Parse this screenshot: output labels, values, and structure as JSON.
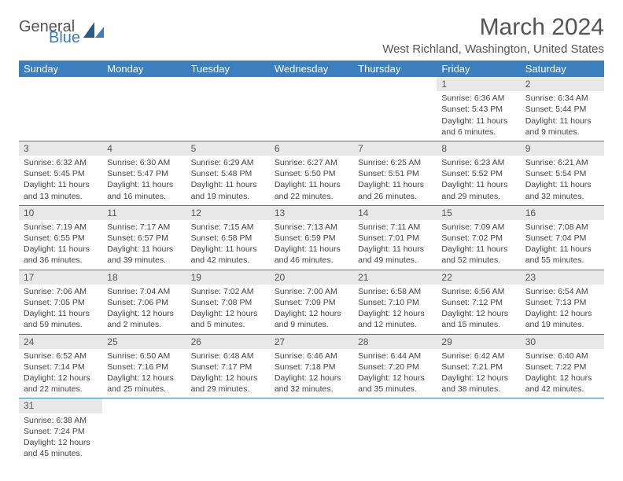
{
  "logo": {
    "general": "General",
    "blue": "Blue"
  },
  "title": "March 2024",
  "location": "West Richland, Washington, United States",
  "header_color": "#3b7fbf",
  "header_text_color": "#ffffff",
  "daynum_bg": "#e8e8e8",
  "day_headers": [
    "Sunday",
    "Monday",
    "Tuesday",
    "Wednesday",
    "Thursday",
    "Friday",
    "Saturday"
  ],
  "weeks": [
    [
      null,
      null,
      null,
      null,
      null,
      {
        "n": "1",
        "sr": "Sunrise: 6:36 AM",
        "ss": "Sunset: 5:43 PM",
        "dl": "Daylight: 11 hours and 6 minutes."
      },
      {
        "n": "2",
        "sr": "Sunrise: 6:34 AM",
        "ss": "Sunset: 5:44 PM",
        "dl": "Daylight: 11 hours and 9 minutes."
      }
    ],
    [
      {
        "n": "3",
        "sr": "Sunrise: 6:32 AM",
        "ss": "Sunset: 5:45 PM",
        "dl": "Daylight: 11 hours and 13 minutes."
      },
      {
        "n": "4",
        "sr": "Sunrise: 6:30 AM",
        "ss": "Sunset: 5:47 PM",
        "dl": "Daylight: 11 hours and 16 minutes."
      },
      {
        "n": "5",
        "sr": "Sunrise: 6:29 AM",
        "ss": "Sunset: 5:48 PM",
        "dl": "Daylight: 11 hours and 19 minutes."
      },
      {
        "n": "6",
        "sr": "Sunrise: 6:27 AM",
        "ss": "Sunset: 5:50 PM",
        "dl": "Daylight: 11 hours and 22 minutes."
      },
      {
        "n": "7",
        "sr": "Sunrise: 6:25 AM",
        "ss": "Sunset: 5:51 PM",
        "dl": "Daylight: 11 hours and 26 minutes."
      },
      {
        "n": "8",
        "sr": "Sunrise: 6:23 AM",
        "ss": "Sunset: 5:52 PM",
        "dl": "Daylight: 11 hours and 29 minutes."
      },
      {
        "n": "9",
        "sr": "Sunrise: 6:21 AM",
        "ss": "Sunset: 5:54 PM",
        "dl": "Daylight: 11 hours and 32 minutes."
      }
    ],
    [
      {
        "n": "10",
        "sr": "Sunrise: 7:19 AM",
        "ss": "Sunset: 6:55 PM",
        "dl": "Daylight: 11 hours and 36 minutes."
      },
      {
        "n": "11",
        "sr": "Sunrise: 7:17 AM",
        "ss": "Sunset: 6:57 PM",
        "dl": "Daylight: 11 hours and 39 minutes."
      },
      {
        "n": "12",
        "sr": "Sunrise: 7:15 AM",
        "ss": "Sunset: 6:58 PM",
        "dl": "Daylight: 11 hours and 42 minutes."
      },
      {
        "n": "13",
        "sr": "Sunrise: 7:13 AM",
        "ss": "Sunset: 6:59 PM",
        "dl": "Daylight: 11 hours and 46 minutes."
      },
      {
        "n": "14",
        "sr": "Sunrise: 7:11 AM",
        "ss": "Sunset: 7:01 PM",
        "dl": "Daylight: 11 hours and 49 minutes."
      },
      {
        "n": "15",
        "sr": "Sunrise: 7:09 AM",
        "ss": "Sunset: 7:02 PM",
        "dl": "Daylight: 11 hours and 52 minutes."
      },
      {
        "n": "16",
        "sr": "Sunrise: 7:08 AM",
        "ss": "Sunset: 7:04 PM",
        "dl": "Daylight: 11 hours and 55 minutes."
      }
    ],
    [
      {
        "n": "17",
        "sr": "Sunrise: 7:06 AM",
        "ss": "Sunset: 7:05 PM",
        "dl": "Daylight: 11 hours and 59 minutes."
      },
      {
        "n": "18",
        "sr": "Sunrise: 7:04 AM",
        "ss": "Sunset: 7:06 PM",
        "dl": "Daylight: 12 hours and 2 minutes."
      },
      {
        "n": "19",
        "sr": "Sunrise: 7:02 AM",
        "ss": "Sunset: 7:08 PM",
        "dl": "Daylight: 12 hours and 5 minutes."
      },
      {
        "n": "20",
        "sr": "Sunrise: 7:00 AM",
        "ss": "Sunset: 7:09 PM",
        "dl": "Daylight: 12 hours and 9 minutes."
      },
      {
        "n": "21",
        "sr": "Sunrise: 6:58 AM",
        "ss": "Sunset: 7:10 PM",
        "dl": "Daylight: 12 hours and 12 minutes."
      },
      {
        "n": "22",
        "sr": "Sunrise: 6:56 AM",
        "ss": "Sunset: 7:12 PM",
        "dl": "Daylight: 12 hours and 15 minutes."
      },
      {
        "n": "23",
        "sr": "Sunrise: 6:54 AM",
        "ss": "Sunset: 7:13 PM",
        "dl": "Daylight: 12 hours and 19 minutes."
      }
    ],
    [
      {
        "n": "24",
        "sr": "Sunrise: 6:52 AM",
        "ss": "Sunset: 7:14 PM",
        "dl": "Daylight: 12 hours and 22 minutes."
      },
      {
        "n": "25",
        "sr": "Sunrise: 6:50 AM",
        "ss": "Sunset: 7:16 PM",
        "dl": "Daylight: 12 hours and 25 minutes."
      },
      {
        "n": "26",
        "sr": "Sunrise: 6:48 AM",
        "ss": "Sunset: 7:17 PM",
        "dl": "Daylight: 12 hours and 29 minutes."
      },
      {
        "n": "27",
        "sr": "Sunrise: 6:46 AM",
        "ss": "Sunset: 7:18 PM",
        "dl": "Daylight: 12 hours and 32 minutes."
      },
      {
        "n": "28",
        "sr": "Sunrise: 6:44 AM",
        "ss": "Sunset: 7:20 PM",
        "dl": "Daylight: 12 hours and 35 minutes."
      },
      {
        "n": "29",
        "sr": "Sunrise: 6:42 AM",
        "ss": "Sunset: 7:21 PM",
        "dl": "Daylight: 12 hours and 38 minutes."
      },
      {
        "n": "30",
        "sr": "Sunrise: 6:40 AM",
        "ss": "Sunset: 7:22 PM",
        "dl": "Daylight: 12 hours and 42 minutes."
      }
    ],
    [
      {
        "n": "31",
        "sr": "Sunrise: 6:38 AM",
        "ss": "Sunset: 7:24 PM",
        "dl": "Daylight: 12 hours and 45 minutes."
      },
      null,
      null,
      null,
      null,
      null,
      null
    ]
  ]
}
